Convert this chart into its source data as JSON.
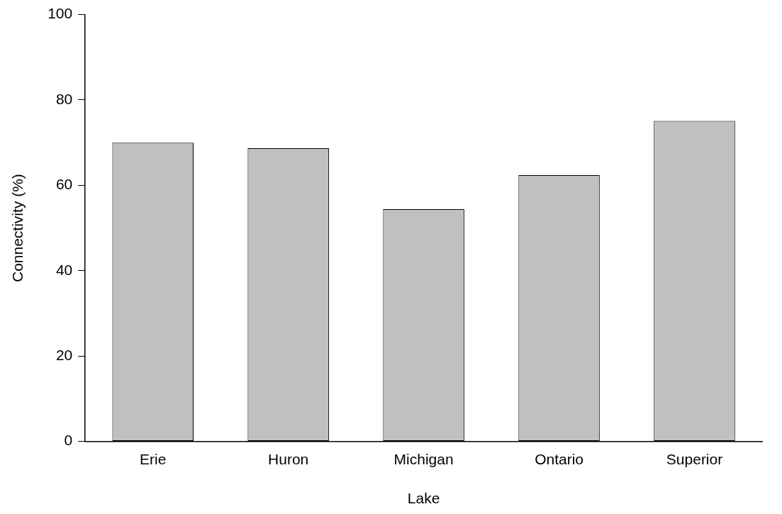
{
  "chart_data": {
    "type": "bar",
    "categories": [
      "Erie",
      "Huron",
      "Michigan",
      "Ontario",
      "Superior"
    ],
    "values": [
      70,
      68.7,
      54.4,
      62.4,
      75.1
    ],
    "color": "#c0c0c0",
    "xlabel": "Lake",
    "ylabel": "Connectivity (%)",
    "ylim": [
      0,
      100
    ],
    "yticks": [
      0,
      20,
      40,
      60,
      80,
      100
    ],
    "grid": false,
    "legend": false
  }
}
